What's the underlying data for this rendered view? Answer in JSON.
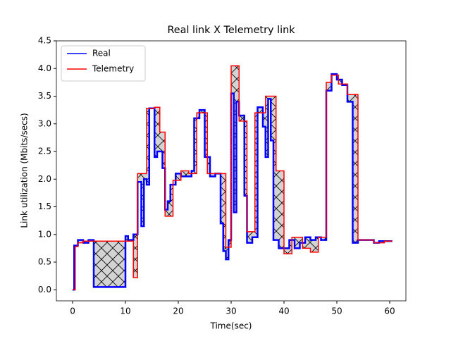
{
  "chart_data": {
    "type": "step-line",
    "title": "Real link X Telemetry link",
    "xlabel": "Time(sec)",
    "ylabel": "Link utilization (Mbits/secs)",
    "xlim": [
      -3.07,
      63.07
    ],
    "ylim": [
      -0.2,
      4.5
    ],
    "xticks": [
      0,
      10,
      20,
      30,
      40,
      50,
      60
    ],
    "yticks": [
      {
        "value": 0,
        "label": "0.0"
      },
      {
        "value": 0.5,
        "label": "0.5"
      },
      {
        "value": 1,
        "label": "1.0"
      },
      {
        "value": 1.5,
        "label": "1.5"
      },
      {
        "value": 2,
        "label": "2.0"
      },
      {
        "value": 2.5,
        "label": "2.5"
      },
      {
        "value": 3,
        "label": "3.0"
      },
      {
        "value": 3.5,
        "label": "3.5"
      },
      {
        "value": 4,
        "label": "4.0"
      },
      {
        "value": 4.5,
        "label": "4.5"
      }
    ],
    "legend": "upper left",
    "fill_between": true,
    "series": [
      {
        "name": "Real",
        "color": "#0000ff",
        "x": [
          0,
          0.3,
          1,
          2,
          3,
          4,
          10,
          10.5,
          11.5,
          12.3,
          13,
          13.5,
          14,
          14.5,
          15.5,
          16,
          17,
          17.5,
          18,
          18.5,
          19.5,
          20.5,
          21.5,
          22.5,
          23,
          24,
          25,
          26,
          27,
          28,
          28.5,
          29,
          29.5,
          30,
          30.5,
          31,
          31.5,
          32.5,
          33,
          34,
          35,
          36,
          36.5,
          37,
          37.5,
          38,
          39,
          40,
          41,
          42,
          43,
          44,
          45,
          46,
          47,
          48,
          49,
          50,
          51,
          52,
          53,
          54,
          57,
          58,
          60.5
        ],
        "values": [
          0,
          0.8,
          0.9,
          0.85,
          0.9,
          0.05,
          0.97,
          0.9,
          1.0,
          1.95,
          1.15,
          2.0,
          1.9,
          3.28,
          2.4,
          2.5,
          2.2,
          1.45,
          1.6,
          1.9,
          2.1,
          2.05,
          2.05,
          2.15,
          3.1,
          3.25,
          2.4,
          2.05,
          2.1,
          1.2,
          0.7,
          0.55,
          0.9,
          3.55,
          1.4,
          3.4,
          3.15,
          1.7,
          0.85,
          0.95,
          3.3,
          2.95,
          2.4,
          3.45,
          2.7,
          0.9,
          0.75,
          0.75,
          0.9,
          0.75,
          0.85,
          0.95,
          0.9,
          0.95,
          0.9,
          3.6,
          3.9,
          3.8,
          3.7,
          3.4,
          0.85,
          0.9,
          0.85,
          0.88,
          0.88
        ]
      },
      {
        "name": "Telemetry",
        "color": "#ff0000",
        "x": [
          0,
          0.5,
          1,
          2,
          11.5,
          12.3,
          14,
          15.5,
          16.5,
          17.5,
          19,
          20.5,
          22,
          23.5,
          25.5,
          29,
          30,
          31.5,
          33,
          34.5,
          36.5,
          38.5,
          40,
          41.5,
          43.5,
          45,
          46.5,
          48,
          49,
          50.3,
          52,
          54,
          57,
          59,
          60.5
        ],
        "values": [
          0,
          0.78,
          0.85,
          0.88,
          0.22,
          2.1,
          3.28,
          3.3,
          2.85,
          1.33,
          1.98,
          2.15,
          2.1,
          3.2,
          2.1,
          0.77,
          4.05,
          3.05,
          1.05,
          3.2,
          3.5,
          2.15,
          0.65,
          0.95,
          0.75,
          0.68,
          0.95,
          3.75,
          3.88,
          3.72,
          3.53,
          0.9,
          0.85,
          0.88,
          0.88
        ]
      }
    ]
  }
}
